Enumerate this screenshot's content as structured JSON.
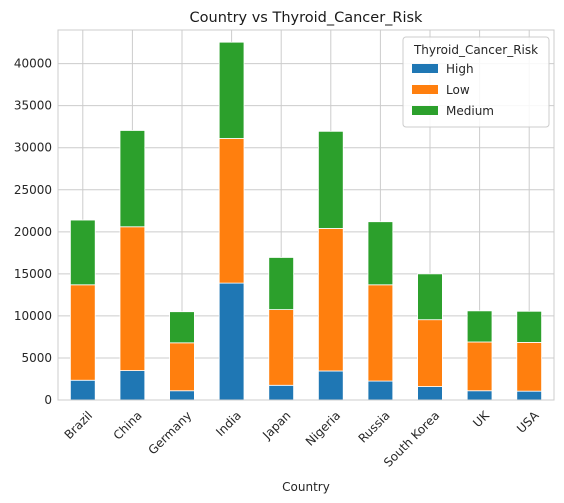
{
  "chart_data": {
    "type": "bar",
    "stacked": true,
    "title": "Country vs Thyroid_Cancer_Risk",
    "xlabel": "Country",
    "ylabel": "",
    "categories": [
      "Brazil",
      "China",
      "Germany",
      "India",
      "Japan",
      "Nigeria",
      "Russia",
      "South Korea",
      "UK",
      "USA"
    ],
    "series": [
      {
        "name": "High",
        "color": "#1f77b4",
        "values": [
          2350,
          3500,
          1100,
          13900,
          1750,
          3450,
          2250,
          1600,
          1100,
          1050
        ]
      },
      {
        "name": "Low",
        "color": "#ff7f0e",
        "values": [
          11350,
          17100,
          5700,
          17200,
          9000,
          16950,
          11450,
          7950,
          5800,
          5800
        ]
      },
      {
        "name": "Medium",
        "color": "#2ca02c",
        "values": [
          7700,
          11450,
          3700,
          11450,
          6200,
          11550,
          7500,
          5450,
          3700,
          3700
        ]
      }
    ],
    "ylim": [
      0,
      44000
    ],
    "yticks": [
      0,
      5000,
      10000,
      15000,
      20000,
      25000,
      30000,
      35000,
      40000
    ],
    "grid": true,
    "legend": {
      "title": "Thyroid_Cancer_Risk",
      "placement": "top-right"
    }
  }
}
